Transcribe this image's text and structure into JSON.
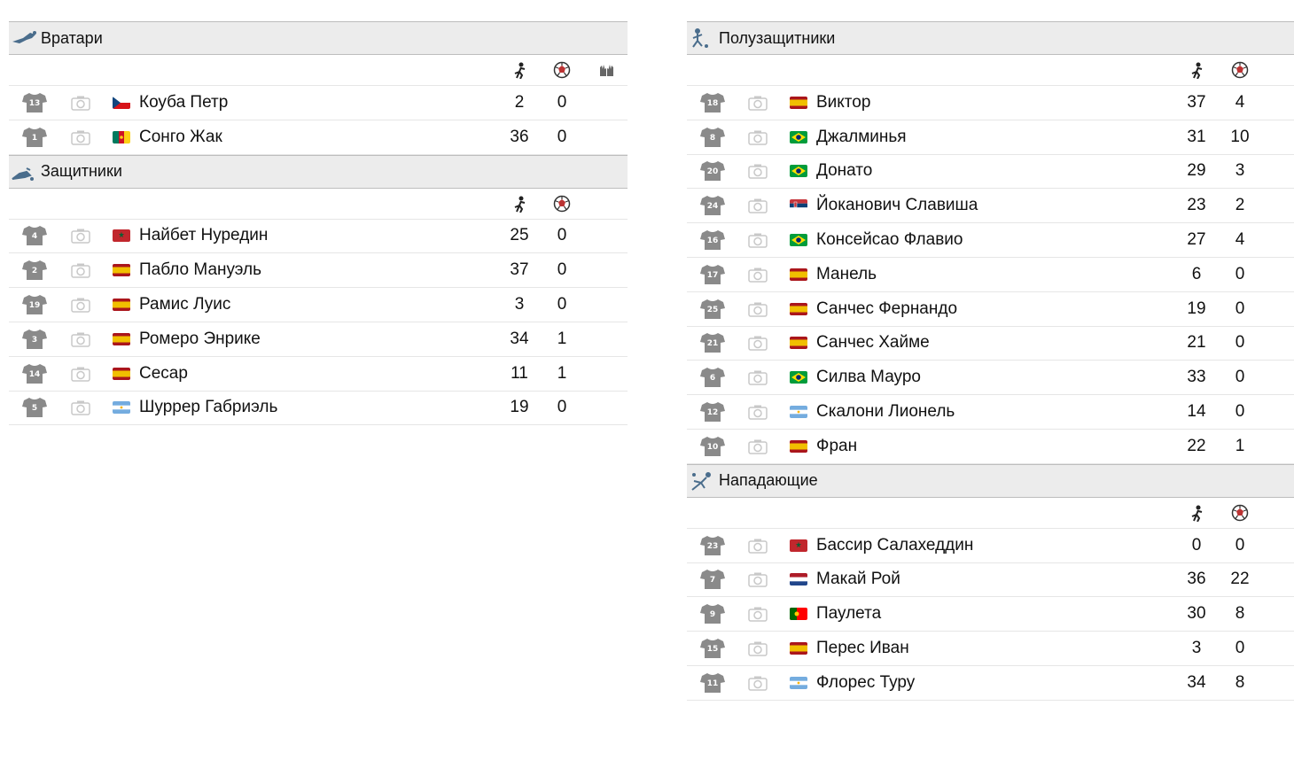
{
  "sections": [
    {
      "title": "Вратари",
      "has_third_col": true,
      "players": [
        {
          "num": "13",
          "name": "Коуба Петр",
          "flag": "cz",
          "s1": "2",
          "s2": "0"
        },
        {
          "num": "1",
          "name": "Сонго Жак",
          "flag": "cm",
          "s1": "36",
          "s2": "0"
        }
      ]
    },
    {
      "title": "Защитники",
      "players": [
        {
          "num": "4",
          "name": "Найбет Нуредин",
          "flag": "ma",
          "s1": "25",
          "s2": "0"
        },
        {
          "num": "2",
          "name": "Пабло Мануэль",
          "flag": "es",
          "s1": "37",
          "s2": "0"
        },
        {
          "num": "19",
          "name": "Рамис Луис",
          "flag": "es",
          "s1": "3",
          "s2": "0"
        },
        {
          "num": "3",
          "name": "Ромеро Энрике",
          "flag": "es",
          "s1": "34",
          "s2": "1"
        },
        {
          "num": "14",
          "name": "Сесар",
          "flag": "es",
          "s1": "11",
          "s2": "1"
        },
        {
          "num": "5",
          "name": "Шуррер Габриэль",
          "flag": "ar",
          "s1": "19",
          "s2": "0"
        }
      ]
    },
    {
      "title": "Полузащитники",
      "players": [
        {
          "num": "18",
          "name": "Виктор",
          "flag": "es",
          "s1": "37",
          "s2": "4"
        },
        {
          "num": "8",
          "name": "Джалминья",
          "flag": "br",
          "s1": "31",
          "s2": "10"
        },
        {
          "num": "20",
          "name": "Донато",
          "flag": "br",
          "s1": "29",
          "s2": "3"
        },
        {
          "num": "24",
          "name": "Йоканович Славиша",
          "flag": "rs",
          "s1": "23",
          "s2": "2"
        },
        {
          "num": "16",
          "name": "Консейсао Флавио",
          "flag": "br",
          "s1": "27",
          "s2": "4"
        },
        {
          "num": "17",
          "name": "Манель",
          "flag": "es",
          "s1": "6",
          "s2": "0"
        },
        {
          "num": "25",
          "name": "Санчес Фернандо",
          "flag": "es",
          "s1": "19",
          "s2": "0"
        },
        {
          "num": "21",
          "name": "Санчес Хайме",
          "flag": "es",
          "s1": "21",
          "s2": "0"
        },
        {
          "num": "6",
          "name": "Силва Мауро",
          "flag": "br",
          "s1": "33",
          "s2": "0"
        },
        {
          "num": "12",
          "name": "Скалони Лионель",
          "flag": "ar",
          "s1": "14",
          "s2": "0"
        },
        {
          "num": "10",
          "name": "Фран",
          "flag": "es",
          "s1": "22",
          "s2": "1"
        }
      ]
    },
    {
      "title": "Нападающие",
      "players": [
        {
          "num": "23",
          "name": "Бассир Салахеддин",
          "flag": "ma",
          "s1": "0",
          "s2": "0"
        },
        {
          "num": "7",
          "name": "Макай Рой",
          "flag": "nl",
          "s1": "36",
          "s2": "22"
        },
        {
          "num": "9",
          "name": "Паулета",
          "flag": "pt",
          "s1": "30",
          "s2": "8"
        },
        {
          "num": "15",
          "name": "Перес Иван",
          "flag": "es",
          "s1": "3",
          "s2": "0"
        },
        {
          "num": "11",
          "name": "Флорес Туру",
          "flag": "ar",
          "s1": "34",
          "s2": "8"
        }
      ]
    }
  ],
  "icons": {
    "stat1": "player-appearances-icon",
    "stat2": "goals-ball-icon",
    "stat3": "goalkeeper-gloves-icon"
  }
}
